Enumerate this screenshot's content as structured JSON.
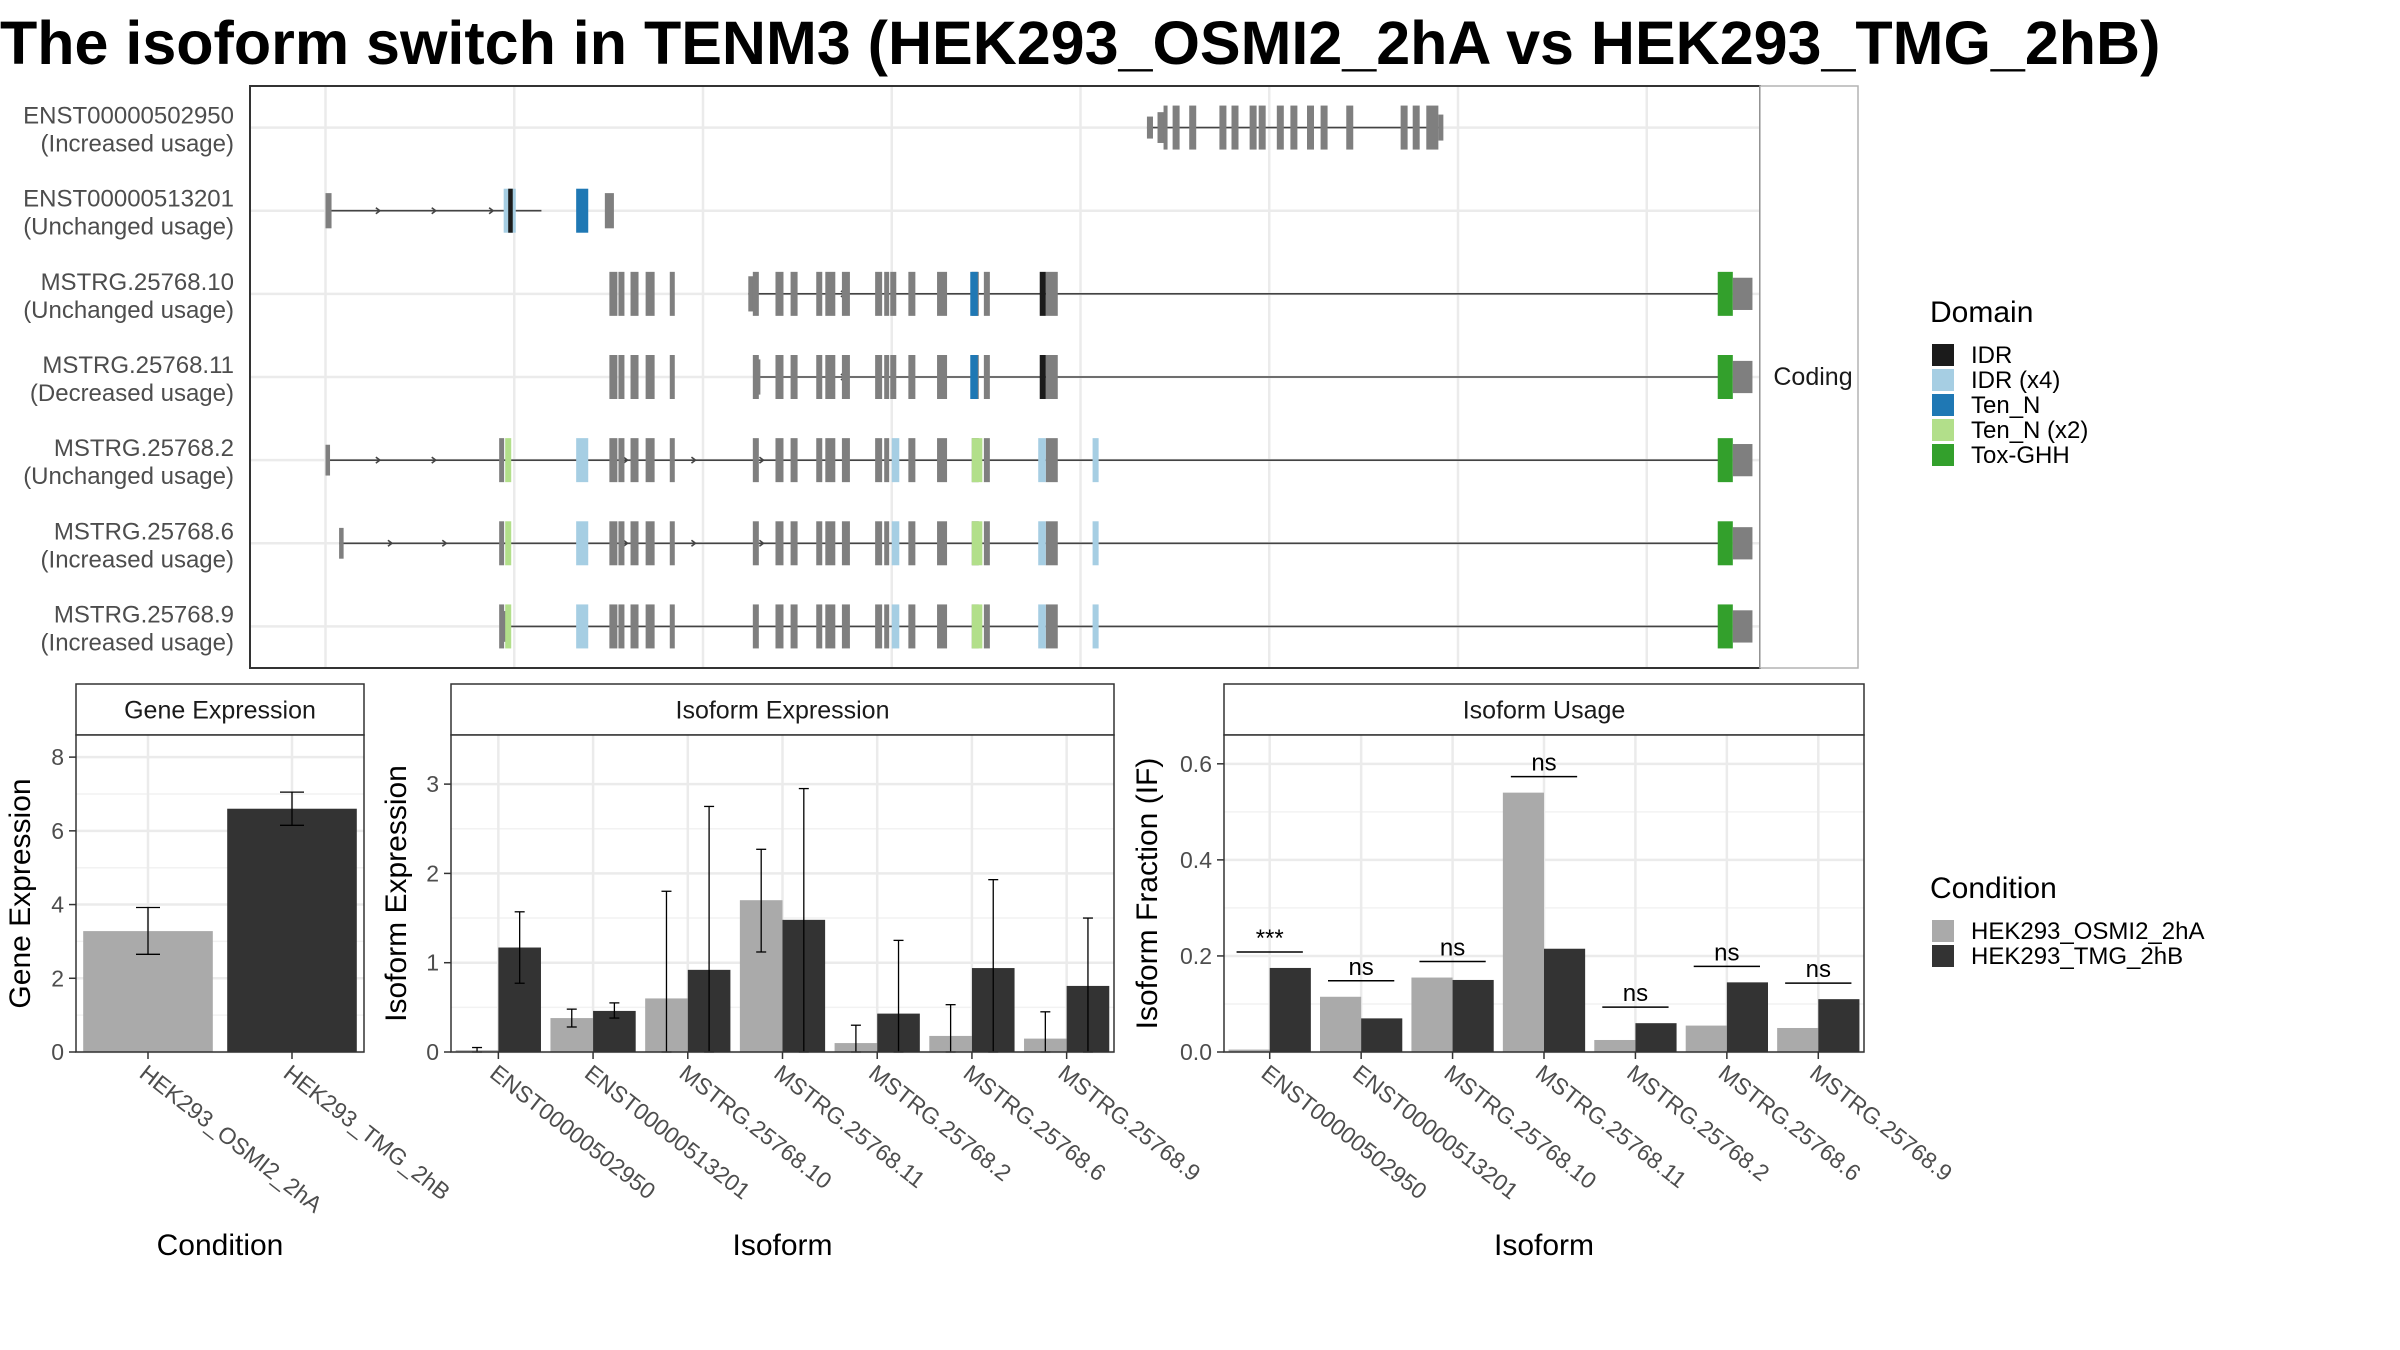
{
  "title": "The isoform switch in TENM3 (HEK293_OSMI2_2hA vs HEK293_TMG_2hB)",
  "facet_label": "Coding",
  "domain_legend": {
    "title": "Domain",
    "items": [
      {
        "label": "IDR",
        "color": "#1b1b1b"
      },
      {
        "label": "IDR (x4)",
        "color": "#a6cee3"
      },
      {
        "label": "Ten_N",
        "color": "#1f78b4"
      },
      {
        "label": "Ten_N (x2)",
        "color": "#b2df8a"
      },
      {
        "label": "Tox-GHH",
        "color": "#33a02c"
      }
    ]
  },
  "condition_legend": {
    "title": "Condition",
    "items": [
      {
        "label": "HEK293_OSMI2_2hA",
        "color": "#aaaaaa"
      },
      {
        "label": "HEK293_TMG_2hB",
        "color": "#333333"
      }
    ]
  },
  "chart_data": [
    {
      "type": "diagram",
      "name": "transcript structures",
      "transcripts": [
        {
          "id": "ENST00000502950",
          "usage": "(Increased usage)"
        },
        {
          "id": "ENST00000513201",
          "usage": "(Unchanged usage)"
        },
        {
          "id": "MSTRG.25768.10",
          "usage": "(Unchanged usage)"
        },
        {
          "id": "MSTRG.25768.11",
          "usage": "(Decreased usage)"
        },
        {
          "id": "MSTRG.25768.2",
          "usage": "(Unchanged usage)"
        },
        {
          "id": "MSTRG.25768.6",
          "usage": "(Increased usage)"
        },
        {
          "id": "MSTRG.25768.9",
          "usage": "(Increased usage)"
        }
      ]
    },
    {
      "type": "bar",
      "title": "Gene Expression",
      "xlabel": "Condition",
      "ylabel": "Gene Expression",
      "ylim": [
        0,
        8.6
      ],
      "yticks": [
        0,
        2,
        4,
        6,
        8
      ],
      "categories": [
        "HEK293_OSMI2_2hA",
        "HEK293_TMG_2hB"
      ],
      "values": [
        3.28,
        6.6
      ],
      "err_low": [
        2.65,
        6.15
      ],
      "err_high": [
        3.92,
        7.05
      ]
    },
    {
      "type": "bar",
      "title": "Isoform Expression",
      "xlabel": "Isoform",
      "ylabel": "Isoform Expression",
      "ylim": [
        0,
        3.55
      ],
      "yticks": [
        0,
        1,
        2,
        3
      ],
      "categories": [
        "ENST00000502950",
        "ENST00000513201",
        "MSTRG.25768.10",
        "MSTRG.25768.11",
        "MSTRG.25768.2",
        "MSTRG.25768.6",
        "MSTRG.25768.9"
      ],
      "series": [
        {
          "name": "HEK293_OSMI2_2hA",
          "values": [
            0.02,
            0.38,
            0.6,
            1.7,
            0.1,
            0.18,
            0.15
          ],
          "err_low": [
            0.0,
            0.28,
            0.0,
            1.12,
            0.0,
            0.0,
            0.0
          ],
          "err_high": [
            0.05,
            0.48,
            1.8,
            2.27,
            0.3,
            0.53,
            0.45
          ]
        },
        {
          "name": "HEK293_TMG_2hB",
          "values": [
            1.17,
            0.46,
            0.92,
            1.48,
            0.43,
            0.94,
            0.74
          ],
          "err_low": [
            0.77,
            0.38,
            0.0,
            0.0,
            0.0,
            0.0,
            0.0
          ],
          "err_high": [
            1.57,
            0.55,
            2.75,
            2.95,
            1.25,
            1.93,
            1.5
          ]
        }
      ]
    },
    {
      "type": "bar",
      "title": "Isoform Usage",
      "xlabel": "Isoform",
      "ylabel": "Isoform Fraction (IF)",
      "ylim": [
        0,
        0.66
      ],
      "yticks": [
        0.0,
        0.2,
        0.4,
        0.6
      ],
      "ytick_labels": [
        "0.0",
        "0.2",
        "0.4",
        "0.6"
      ],
      "categories": [
        "ENST00000502950",
        "ENST00000513201",
        "MSTRG.25768.10",
        "MSTRG.25768.11",
        "MSTRG.25768.2",
        "MSTRG.25768.6",
        "MSTRG.25768.9"
      ],
      "series": [
        {
          "name": "HEK293_OSMI2_2hA",
          "values": [
            0.005,
            0.115,
            0.155,
            0.54,
            0.025,
            0.055,
            0.05
          ]
        },
        {
          "name": "HEK293_TMG_2hB",
          "values": [
            0.175,
            0.07,
            0.15,
            0.215,
            0.06,
            0.145,
            0.11
          ]
        }
      ],
      "significance": [
        "***",
        "ns",
        "ns",
        "ns",
        "ns",
        "ns",
        "ns"
      ]
    }
  ]
}
